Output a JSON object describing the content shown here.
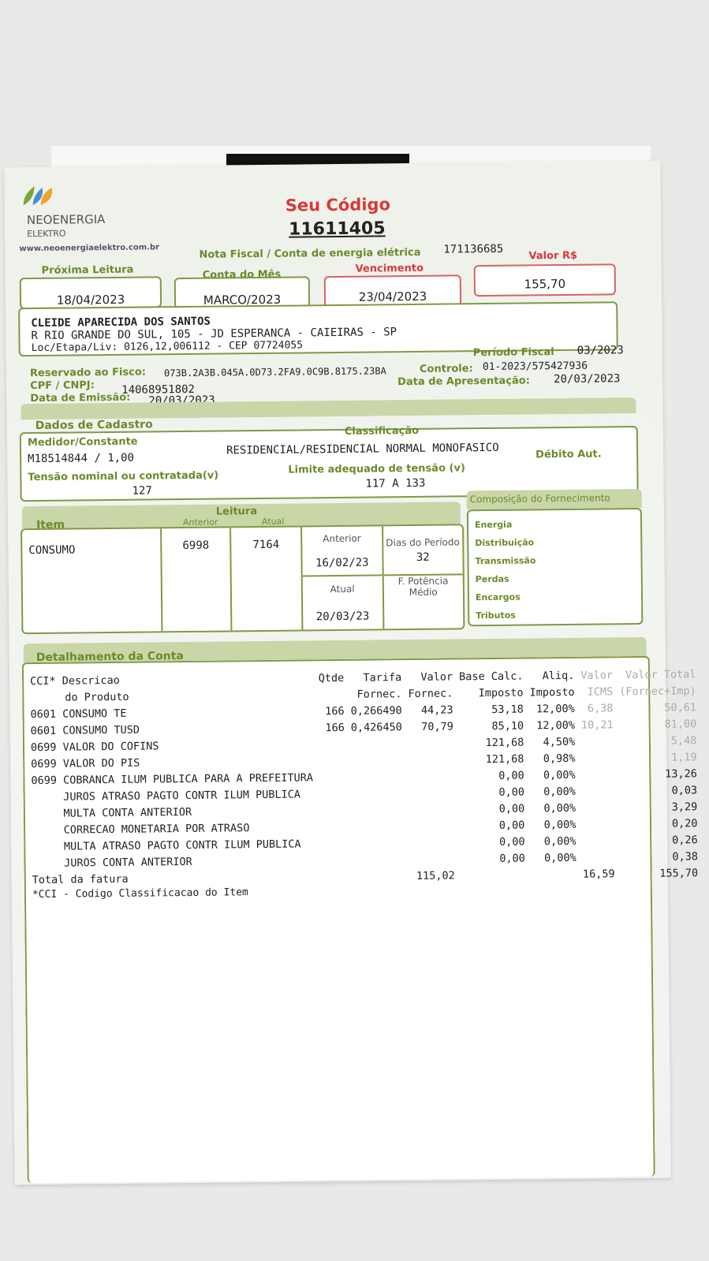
{
  "header": {
    "brand": "NEOENERGIA",
    "sub_brand": "ELEKTRO",
    "website": "www.neoenergiaelektro.com.br",
    "code_label": "Seu Código",
    "code": "11611405",
    "nf_label": "Nota Fiscal / Conta de energia elétrica",
    "nf_number": "171136685"
  },
  "summary": [
    {
      "label": "Próxima Leitura",
      "value": "18/04/2023"
    },
    {
      "label": "Conta do Mês",
      "value": "MARCO/2023"
    },
    {
      "label": "Vencimento",
      "value": "23/04/2023"
    },
    {
      "label": "Valor R$",
      "value": "155,70"
    }
  ],
  "customer": {
    "name": "CLEIDE APARECIDA DOS SANTOS",
    "address": "R RIO GRANDE DO SUL, 105 - JD ESPERANCA - CAIEIRAS - SP",
    "loc": "Loc/Etapa/Liv: 0126,12,006112 - CEP 07724055"
  },
  "fiscal": {
    "reserved_label": "Reservado ao Fisco:",
    "reserved": "073B.2A3B.045A.0D73.2FA9.0C9B.8175.23BA",
    "cpf_label": "CPF / CNPJ:",
    "cpf": "14068951802",
    "emissao_label": "Data de Emissão:",
    "emissao": "20/03/2023",
    "periodo_label": "Período Fiscal",
    "periodo": "03/2023",
    "controle_label": "Controle:",
    "controle": "01-2023/575427936",
    "apresentacao_label": "Data de Apresentação:",
    "apresentacao": "20/03/2023"
  },
  "cadastro": {
    "title": "Dados de Cadastro",
    "medidor_label": "Medidor/Constante",
    "medidor": "M18514844 / 1,00",
    "classificacao_label": "Classificação",
    "classificacao": "RESIDENCIAL/RESIDENCIAL NORMAL MONOFASICO",
    "debito": "Débito Aut.",
    "tensao_label": "Tensão nominal ou contratada(v)",
    "tensao": "127",
    "limite_label": "Limite adequado de tensão (v)",
    "limite": "117 A 133"
  },
  "leitura": {
    "item_label": "Item",
    "leitura_label": "Leitura",
    "anterior_label": "Anterior",
    "atual_label": "Atual",
    "item": "CONSUMO",
    "anterior": "6998",
    "atual": "7164",
    "date_anterior_label": "Anterior",
    "date_anterior": "16/02/23",
    "dias_label": "Dias do Período",
    "dias": "32",
    "date_atual_label": "Atual",
    "date_atual": "20/03/23",
    "fpot_label": "F. Potência Médio"
  },
  "composicao": {
    "title": "Composição do Fornecimento",
    "items": [
      "Energia",
      "Distribuição",
      "Transmissão",
      "Perdas",
      "Encargos",
      "Tributos"
    ]
  },
  "detalhamento": {
    "title": "Detalhamento da Conta",
    "headers": [
      [
        "CCI* Descricao",
        "do Produto"
      ],
      [
        "Qtde",
        ""
      ],
      [
        "Tarifa",
        "Fornec."
      ],
      [
        "Valor",
        "Fornec."
      ],
      [
        "Base Calc.",
        "Imposto"
      ],
      [
        "Aliq.",
        "Imposto"
      ],
      [
        "Valor",
        "ICMS"
      ],
      [
        "Valor Total",
        "(Fornec+Imp)"
      ]
    ],
    "rows": [
      [
        "0601 CONSUMO TE",
        "166",
        "0,266490",
        "44,23",
        "53,18",
        "12,00%",
        "6,38",
        "50,61"
      ],
      [
        "0601 CONSUMO TUSD",
        "166",
        "0,426450",
        "70,79",
        "85,10",
        "12,00%",
        "10,21",
        "81,00"
      ],
      [
        "0699 VALOR DO COFINS",
        "",
        "",
        "",
        "121,68",
        "4,50%",
        "",
        "5,48"
      ],
      [
        "0699 VALOR DO PIS",
        "",
        "",
        "",
        "121,68",
        "0,98%",
        "",
        "1,19"
      ],
      [
        "0699 COBRANCA ILUM PUBLICA PARA A PREFEITURA",
        "",
        "",
        "",
        "0,00",
        "0,00%",
        "",
        "13,26"
      ],
      [
        "     JUROS ATRASO PAGTO CONTR ILUM PUBLICA",
        "",
        "",
        "",
        "0,00",
        "0,00%",
        "",
        "0,03"
      ],
      [
        "     MULTA CONTA ANTERIOR",
        "",
        "",
        "",
        "0,00",
        "0,00%",
        "",
        "3,29"
      ],
      [
        "     CORRECAO MONETARIA POR ATRASO",
        "",
        "",
        "",
        "0,00",
        "0,00%",
        "",
        "0,20"
      ],
      [
        "     MULTA ATRASO PAGTO CONTR ILUM PUBLICA",
        "",
        "",
        "",
        "0,00",
        "0,00%",
        "",
        "0,26"
      ],
      [
        "     JUROS CONTA ANTERIOR",
        "",
        "",
        "",
        "0,00",
        "0,00%",
        "",
        "0,38"
      ]
    ],
    "total_label": "Total da fatura",
    "total_fornec": "115,02",
    "total_icms": "16,59",
    "total": "155,70",
    "footnote": "*CCI - Codigo Classificacao do Item"
  }
}
